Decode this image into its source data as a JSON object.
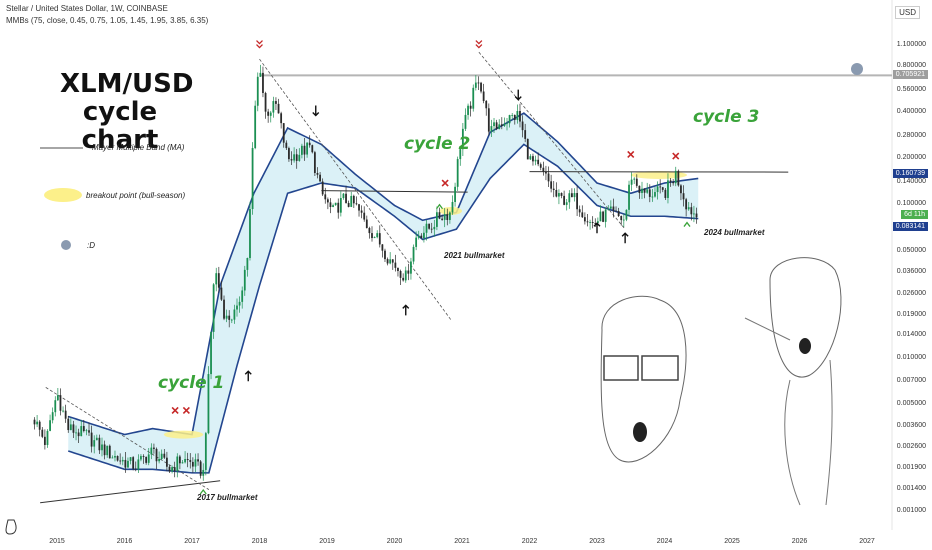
{
  "header": {
    "symbol_line": "Stellar / United States Dollar, 1W, COINBASE",
    "indicator_line": "MMBs (75, close, 0.45, 0.75, 1.05, 1.45, 1.95, 3.85, 6.35)"
  },
  "annotations": {
    "title_line1": "XLM/USD",
    "title_line2": "cycle chart",
    "legend_band": "Mayer Multiple Band (MA)",
    "legend_breakout": "breakout point (bull-season)",
    "legend_emoji": ":D",
    "cycle1": "cycle 1",
    "cycle2": "cycle 2",
    "cycle3": "cycle 3",
    "bull2017": "2017 bullmarket",
    "bull2021": "2021 bullmarket",
    "bull2024": "2024 bullmarket"
  },
  "axis": {
    "currency": "USD",
    "countdown": "6d 11h"
  },
  "colors": {
    "candle_up": "#1b8f52",
    "candle_down": "#2a2a2a",
    "band_fill": "#dbf1f7",
    "band_line": "#23468f",
    "breakout": "#fcf08a",
    "ath_line": "#b5b5b5",
    "cycle_text": "#3aa33a",
    "marker_red": "#c62828",
    "price_tag": "#1f3f8f",
    "countdown_tag": "#4caf50"
  },
  "chart_data": {
    "type": "candlestick",
    "scale": "log",
    "ylim": [
      0.001,
      1.2
    ],
    "xlim": [
      "2014-09",
      "2027-03"
    ],
    "x_ticks": [
      "2015",
      "2016",
      "2017",
      "2018",
      "2019",
      "2020",
      "2021",
      "2022",
      "2023",
      "2024",
      "2025",
      "2026",
      "2027"
    ],
    "y_ticks": [
      "1.100000",
      "0.800000",
      "0.560000",
      "0.400000",
      "0.280000",
      "0.200000",
      "0.140000",
      "0.100000",
      "0.070000",
      "0.050000",
      "0.036000",
      "0.026000",
      "0.019000",
      "0.014000",
      "0.010000",
      "0.007000",
      "0.005000",
      "0.003600",
      "0.002600",
      "0.001900",
      "0.001400",
      "0.001000"
    ],
    "last_price": "0.083141",
    "upper_level": "0.160739",
    "ath_level": "0.705921",
    "price_path": [
      [
        "2014-09",
        0.004
      ],
      [
        "2014-11",
        0.0028
      ],
      [
        "2015-01",
        0.006
      ],
      [
        "2015-03",
        0.0035
      ],
      [
        "2015-06",
        0.0032
      ],
      [
        "2015-09",
        0.0026
      ],
      [
        "2015-12",
        0.0022
      ],
      [
        "2016-03",
        0.002
      ],
      [
        "2016-06",
        0.0025
      ],
      [
        "2016-09",
        0.0019
      ],
      [
        "2016-11",
        0.0022
      ],
      [
        "2017-01",
        0.0021
      ],
      [
        "2017-03",
        0.0018
      ],
      [
        "2017-04",
        0.008
      ],
      [
        "2017-05",
        0.04
      ],
      [
        "2017-07",
        0.018
      ],
      [
        "2017-09",
        0.02
      ],
      [
        "2017-11",
        0.05
      ],
      [
        "2017-12",
        0.35
      ],
      [
        "2018-01",
        0.9
      ],
      [
        "2018-02",
        0.4
      ],
      [
        "2018-04",
        0.45
      ],
      [
        "2018-06",
        0.2
      ],
      [
        "2018-08",
        0.22
      ],
      [
        "2018-10",
        0.24
      ],
      [
        "2018-12",
        0.12
      ],
      [
        "2019-02",
        0.09
      ],
      [
        "2019-04",
        0.11
      ],
      [
        "2019-06",
        0.1
      ],
      [
        "2019-08",
        0.075
      ],
      [
        "2019-10",
        0.06
      ],
      [
        "2019-12",
        0.045
      ],
      [
        "2020-03",
        0.034
      ],
      [
        "2020-05",
        0.065
      ],
      [
        "2020-07",
        0.07
      ],
      [
        "2020-09",
        0.085
      ],
      [
        "2020-11",
        0.09
      ],
      [
        "2021-01",
        0.3
      ],
      [
        "2021-04",
        0.7
      ],
      [
        "2021-06",
        0.3
      ],
      [
        "2021-08",
        0.35
      ],
      [
        "2021-11",
        0.39
      ],
      [
        "2022-01",
        0.2
      ],
      [
        "2022-04",
        0.15
      ],
      [
        "2022-06",
        0.11
      ],
      [
        "2022-09",
        0.11
      ],
      [
        "2022-12",
        0.075
      ],
      [
        "2023-03",
        0.09
      ],
      [
        "2023-06",
        0.08
      ],
      [
        "2023-07",
        0.16
      ],
      [
        "2023-09",
        0.12
      ],
      [
        "2023-11",
        0.12
      ],
      [
        "2024-01",
        0.12
      ],
      [
        "2024-03",
        0.16
      ],
      [
        "2024-05",
        0.1
      ],
      [
        "2024-07",
        0.083
      ]
    ],
    "band_upper": [
      [
        "2015-03",
        0.0042
      ],
      [
        "2016-01",
        0.0032
      ],
      [
        "2016-06",
        0.0035
      ],
      [
        "2017-01",
        0.0032
      ],
      [
        "2017-06",
        0.03
      ],
      [
        "2017-12",
        0.12
      ],
      [
        "2018-06",
        0.32
      ],
      [
        "2018-12",
        0.25
      ],
      [
        "2019-06",
        0.16
      ],
      [
        "2020-01",
        0.1
      ],
      [
        "2020-06",
        0.08
      ],
      [
        "2020-12",
        0.09
      ],
      [
        "2021-06",
        0.3
      ],
      [
        "2021-12",
        0.4
      ],
      [
        "2022-06",
        0.26
      ],
      [
        "2023-01",
        0.14
      ],
      [
        "2023-07",
        0.12
      ],
      [
        "2024-01",
        0.14
      ],
      [
        "2024-07",
        0.15
      ]
    ],
    "band_lower": [
      [
        "2015-03",
        0.0025
      ],
      [
        "2016-01",
        0.0019
      ],
      [
        "2016-06",
        0.0019
      ],
      [
        "2017-01",
        0.0018
      ],
      [
        "2017-04",
        0.0018
      ],
      [
        "2017-09",
        0.009
      ],
      [
        "2018-01",
        0.03
      ],
      [
        "2018-06",
        0.12
      ],
      [
        "2018-12",
        0.14
      ],
      [
        "2019-06",
        0.13
      ],
      [
        "2020-01",
        0.085
      ],
      [
        "2020-06",
        0.06
      ],
      [
        "2020-12",
        0.07
      ],
      [
        "2021-06",
        0.15
      ],
      [
        "2021-12",
        0.25
      ],
      [
        "2022-06",
        0.18
      ],
      [
        "2023-01",
        0.1
      ],
      [
        "2023-07",
        0.085
      ],
      [
        "2024-01",
        0.085
      ],
      [
        "2024-07",
        0.082
      ]
    ]
  }
}
